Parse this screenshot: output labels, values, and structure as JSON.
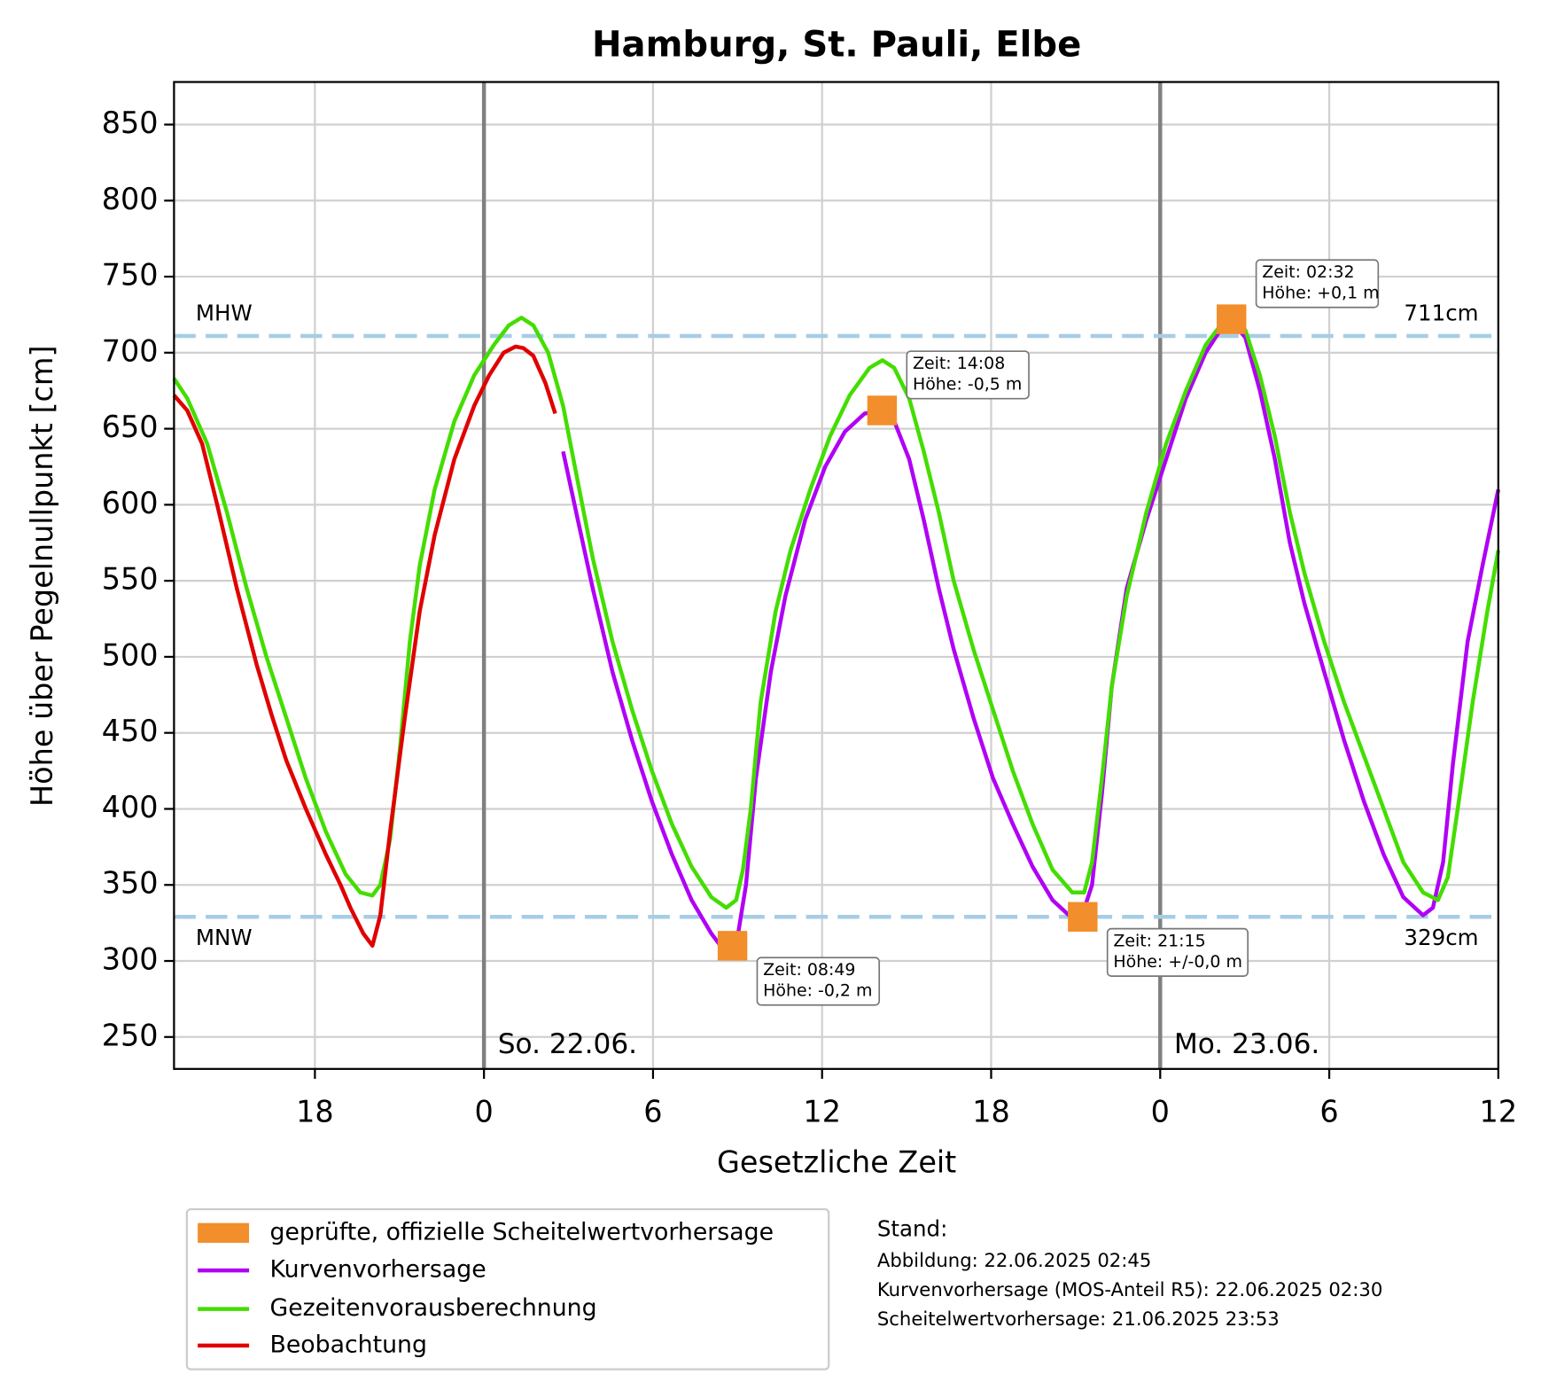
{
  "chart_data": {
    "type": "line",
    "title": "Hamburg, St. Pauli, Elbe",
    "xlabel": "Gesetzliche Zeit",
    "ylabel": "Höhe über Pegelnullpunkt [cm]",
    "xlim": [
      -11,
      36
    ],
    "xticks": [
      {
        "value": -6,
        "label": "18"
      },
      0,
      6,
      12,
      {
        "value": 18,
        "label": "18"
      },
      {
        "value": 24,
        "label": "0"
      },
      {
        "value": 30,
        "label": "6"
      },
      {
        "value": 36,
        "label": "12"
      }
    ],
    "ylim": [
      229,
      878
    ],
    "yticks": [
      250,
      300,
      350,
      400,
      450,
      500,
      550,
      600,
      650,
      700,
      750,
      800,
      850
    ],
    "grid": true,
    "day_lines": [
      {
        "x": 0,
        "label": "So. 22.06."
      },
      {
        "x": 24,
        "label": "Mo. 23.06."
      }
    ],
    "reference_lines": [
      {
        "name": "MHW",
        "value": 711,
        "value_label": "711cm",
        "color": "#a6cde6"
      },
      {
        "name": "MNW",
        "value": 329,
        "value_label": "329cm",
        "color": "#a6cde6"
      }
    ],
    "peaks": {
      "name": "geprüfte, offizielle Scheitelwertvorhersage",
      "color": "#f28e2b",
      "x": [
        8.82,
        14.13,
        21.25,
        26.53
      ],
      "values": [
        310,
        662,
        329,
        722
      ],
      "annotations": [
        [
          "Zeit: 08:49",
          "Höhe: -0,2 m"
        ],
        [
          "Zeit: 14:08",
          "Höhe: -0,5 m"
        ],
        [
          "Zeit: 21:15",
          "Höhe: +/-0,0 m"
        ],
        [
          "Zeit: 02:32",
          "Höhe: +0,1 m"
        ]
      ]
    },
    "series": [
      {
        "name": "Kurvenvorhersage",
        "color": "#b000f5",
        "x": [
          2.81,
          3.33,
          3.86,
          4.56,
          5.26,
          5.96,
          6.67,
          7.37,
          8.07,
          8.6,
          8.95,
          9.3,
          9.65,
          10.18,
          10.7,
          11.4,
          12.11,
          12.81,
          13.51,
          14.14,
          14.56,
          15.09,
          15.61,
          16.14,
          16.67,
          17.37,
          18.07,
          18.77,
          19.47,
          20.18,
          20.88,
          21.23,
          21.58,
          21.93,
          22.28,
          22.81,
          23.51,
          24.21,
          24.91,
          25.61,
          26.14,
          26.6,
          27.02,
          27.54,
          28.07,
          28.6,
          29.12,
          29.82,
          30.53,
          31.23,
          31.93,
          32.63,
          33.33,
          33.68,
          34.04,
          34.39,
          34.91,
          35.44,
          36
        ],
        "values": [
          635,
          590,
          545,
          490,
          445,
          405,
          370,
          340,
          318,
          305,
          310,
          350,
          420,
          490,
          540,
          590,
          625,
          648,
          660,
          662,
          655,
          630,
          590,
          545,
          505,
          460,
          420,
          390,
          362,
          340,
          328,
          330,
          350,
          410,
          480,
          545,
          590,
          630,
          670,
          700,
          715,
          719,
          710,
          675,
          630,
          575,
          535,
          490,
          445,
          405,
          370,
          342,
          330,
          335,
          365,
          430,
          510,
          560,
          610
        ]
      },
      {
        "name": "Gezeitenvorausberechnung",
        "color": "#44dd00",
        "x": [
          -11,
          -10.53,
          -9.82,
          -9.12,
          -8.42,
          -7.72,
          -7.02,
          -6.32,
          -5.61,
          -4.91,
          -4.39,
          -3.96,
          -3.68,
          -3.33,
          -2.98,
          -2.63,
          -2.28,
          -1.75,
          -1.05,
          -0.35,
          0.35,
          0.88,
          1.33,
          1.75,
          2.28,
          2.81,
          3.33,
          3.86,
          4.56,
          5.26,
          5.96,
          6.67,
          7.37,
          8.07,
          8.6,
          8.95,
          9.19,
          9.47,
          9.82,
          10.35,
          10.88,
          11.58,
          12.28,
          12.98,
          13.68,
          14.14,
          14.56,
          15.09,
          15.61,
          16.14,
          16.67,
          17.37,
          18.07,
          18.77,
          19.47,
          20.18,
          20.88,
          21.3,
          21.58,
          21.93,
          22.28,
          22.81,
          23.51,
          24.21,
          24.91,
          25.61,
          26.14,
          26.6,
          27.02,
          27.54,
          28.07,
          28.6,
          29.12,
          29.82,
          30.53,
          31.23,
          31.93,
          32.63,
          33.33,
          33.86,
          34.21,
          34.56,
          35.09,
          35.61,
          36
        ],
        "values": [
          683,
          670,
          640,
          595,
          545,
          500,
          460,
          420,
          385,
          357,
          345,
          343,
          350,
          380,
          440,
          510,
          560,
          610,
          655,
          685,
          705,
          718,
          723,
          718,
          700,
          665,
          615,
          565,
          510,
          465,
          425,
          390,
          362,
          342,
          335,
          340,
          360,
          400,
          470,
          530,
          570,
          610,
          645,
          672,
          690,
          695,
          690,
          670,
          635,
          595,
          550,
          505,
          465,
          425,
          390,
          360,
          345,
          345,
          365,
          420,
          480,
          540,
          595,
          640,
          675,
          705,
          718,
          722,
          715,
          685,
          645,
          595,
          555,
          510,
          470,
          435,
          400,
          365,
          345,
          340,
          355,
          400,
          470,
          530,
          570
        ]
      },
      {
        "name": "Beobachtung",
        "color": "#e00000",
        "x": [
          -11,
          -10.53,
          -10,
          -9.47,
          -8.77,
          -8.07,
          -7.54,
          -7.02,
          -6.32,
          -5.61,
          -5.09,
          -4.74,
          -4.28,
          -3.96,
          -3.68,
          -3.33,
          -2.81,
          -2.28,
          -1.75,
          -1.05,
          -0.35,
          0.18,
          0.7,
          1.12,
          1.4,
          1.75,
          2.18,
          2.53
        ],
        "values": [
          672,
          662,
          640,
          600,
          545,
          495,
          462,
          432,
          400,
          370,
          350,
          335,
          318,
          310,
          330,
          385,
          460,
          530,
          580,
          630,
          665,
          685,
          700,
          704,
          703,
          698,
          680,
          660
        ]
      }
    ],
    "stand": {
      "title": "Stand:",
      "lines": [
        "Abbildung: 22.06.2025 02:45",
        "Kurvenvorhersage (MOS-Anteil R5): 22.06.2025 02:30",
        "Scheitelwertvorhersage: 21.06.2025 23:53"
      ]
    }
  }
}
